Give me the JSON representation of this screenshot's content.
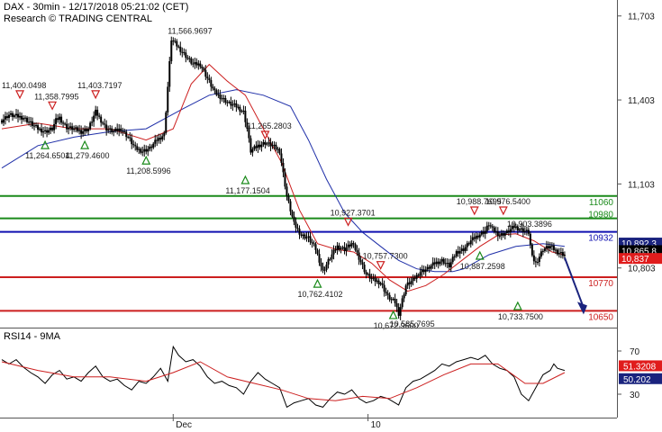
{
  "header": {
    "line1": "DAX - 30min - 12/17/2018 05:21:02 (CET)",
    "line2": "Research © TRADING CENTRAL"
  },
  "colors": {
    "candle": "#000000",
    "ma_fast": "#cc1f1f",
    "ma_slow": "#1f2fa8",
    "resistance": "#1a8a1a",
    "pivot": "#1010b0",
    "support": "#cc1f1f",
    "marker_up": "#1a8a1a",
    "marker_down": "#cc1f1f",
    "rsi": "#000000",
    "rsi_ma": "#cc1f1f",
    "badge_red": "#e01c1c",
    "badge_blue": "#1a237e",
    "badge_black": "#000000",
    "arrow": "#1a237e"
  },
  "chart_data": [
    {
      "type": "candlestick",
      "title": "DAX - 30min",
      "yaxis_ticks": [
        "11,703",
        "11,403",
        "11,103",
        "10,803"
      ],
      "ylim": [
        10590,
        11760
      ],
      "xaxis_ticks": [
        "Dec",
        "10"
      ],
      "x_range_bars": [
        0,
        340
      ],
      "xaxis_tick_bars": [
        95,
        203
      ],
      "series_close": [
        [
          0,
          11330
        ],
        [
          4,
          11350
        ],
        [
          8,
          11345
        ],
        [
          12,
          11340
        ],
        [
          16,
          11320
        ],
        [
          20,
          11300
        ],
        [
          24,
          11290
        ],
        [
          28,
          11300
        ],
        [
          30,
          11330
        ],
        [
          32,
          11340
        ],
        [
          34,
          11320
        ],
        [
          36,
          11305
        ],
        [
          40,
          11300
        ],
        [
          44,
          11290
        ],
        [
          48,
          11300
        ],
        [
          50,
          11330
        ],
        [
          52,
          11360
        ],
        [
          54,
          11340
        ],
        [
          58,
          11300
        ],
        [
          62,
          11290
        ],
        [
          66,
          11300
        ],
        [
          70,
          11270
        ],
        [
          74,
          11230
        ],
        [
          78,
          11220
        ],
        [
          82,
          11230
        ],
        [
          86,
          11260
        ],
        [
          90,
          11280
        ],
        [
          94,
          11620
        ],
        [
          98,
          11590
        ],
        [
          102,
          11560
        ],
        [
          106,
          11530
        ],
        [
          110,
          11530
        ],
        [
          114,
          11480
        ],
        [
          118,
          11430
        ],
        [
          122,
          11410
        ],
        [
          126,
          11390
        ],
        [
          130,
          11380
        ],
        [
          134,
          11360
        ],
        [
          136,
          11300
        ],
        [
          138,
          11220
        ],
        [
          142,
          11240
        ],
        [
          146,
          11250
        ],
        [
          150,
          11240
        ],
        [
          154,
          11220
        ],
        [
          158,
          11060
        ],
        [
          162,
          10960
        ],
        [
          166,
          10920
        ],
        [
          170,
          10910
        ],
        [
          174,
          10870
        ],
        [
          178,
          10790
        ],
        [
          182,
          10840
        ],
        [
          186,
          10880
        ],
        [
          190,
          10870
        ],
        [
          194,
          10890
        ],
        [
          196,
          10870
        ],
        [
          198,
          10840
        ],
        [
          202,
          10780
        ],
        [
          206,
          10760
        ],
        [
          210,
          10750
        ],
        [
          214,
          10700
        ],
        [
          218,
          10680
        ],
        [
          220,
          10640
        ],
        [
          224,
          10740
        ],
        [
          228,
          10760
        ],
        [
          232,
          10790
        ],
        [
          236,
          10800
        ],
        [
          240,
          10820
        ],
        [
          244,
          10830
        ],
        [
          248,
          10810
        ],
        [
          252,
          10860
        ],
        [
          256,
          10870
        ],
        [
          260,
          10900
        ],
        [
          264,
          10920
        ],
        [
          268,
          10935
        ],
        [
          270,
          10960
        ],
        [
          272,
          10940
        ],
        [
          276,
          10920
        ],
        [
          280,
          10930
        ],
        [
          284,
          10950
        ],
        [
          288,
          10940
        ],
        [
          292,
          10930
        ],
        [
          294,
          10840
        ],
        [
          296,
          10820
        ],
        [
          300,
          10870
        ],
        [
          304,
          10880
        ],
        [
          308,
          10860
        ],
        [
          312,
          10850
        ]
      ],
      "ma_fast": [
        [
          0,
          11300
        ],
        [
          20,
          11320
        ],
        [
          40,
          11300
        ],
        [
          60,
          11300
        ],
        [
          80,
          11260
        ],
        [
          95,
          11300
        ],
        [
          105,
          11460
        ],
        [
          115,
          11530
        ],
        [
          125,
          11470
        ],
        [
          135,
          11420
        ],
        [
          145,
          11300
        ],
        [
          155,
          11180
        ],
        [
          165,
          11010
        ],
        [
          175,
          10890
        ],
        [
          185,
          10870
        ],
        [
          195,
          10860
        ],
        [
          205,
          10820
        ],
        [
          215,
          10760
        ],
        [
          225,
          10720
        ],
        [
          235,
          10740
        ],
        [
          245,
          10780
        ],
        [
          255,
          10830
        ],
        [
          265,
          10880
        ],
        [
          275,
          10920
        ],
        [
          285,
          10925
        ],
        [
          295,
          10900
        ],
        [
          305,
          10860
        ],
        [
          312,
          10850
        ]
      ],
      "ma_slow": [
        [
          0,
          11160
        ],
        [
          20,
          11240
        ],
        [
          40,
          11270
        ],
        [
          60,
          11290
        ],
        [
          80,
          11300
        ],
        [
          100,
          11370
        ],
        [
          115,
          11420
        ],
        [
          130,
          11440
        ],
        [
          145,
          11420
        ],
        [
          160,
          11380
        ],
        [
          170,
          11260
        ],
        [
          180,
          11120
        ],
        [
          190,
          11000
        ],
        [
          200,
          10930
        ],
        [
          210,
          10880
        ],
        [
          220,
          10830
        ],
        [
          230,
          10800
        ],
        [
          240,
          10790
        ],
        [
          250,
          10790
        ],
        [
          256,
          10800
        ],
        [
          270,
          10850
        ],
        [
          285,
          10880
        ],
        [
          300,
          10890
        ],
        [
          312,
          10880
        ]
      ],
      "horizontal_levels": [
        {
          "name": "resistance-2",
          "value": 11060,
          "label": "11060",
          "color": "#1a8a1a"
        },
        {
          "name": "resistance-1",
          "value": 10980,
          "label": "10980",
          "color": "#1a8a1a"
        },
        {
          "name": "pivot",
          "value": 10932,
          "label": "10932",
          "color": "#1010b0"
        },
        {
          "name": "support-1",
          "value": 10770,
          "label": "10770",
          "color": "#cc1f1f"
        },
        {
          "name": "support-2",
          "value": 10650,
          "label": "10650",
          "color": "#cc1f1f"
        }
      ],
      "price_badges": [
        {
          "name": "badge-blue",
          "value": 10892,
          "label": "10,892.3",
          "color": "#1a237e"
        },
        {
          "name": "badge-black",
          "value": 10865,
          "label": "10,865.8",
          "color": "#000000"
        },
        {
          "name": "badge-red",
          "value": 10837,
          "label": "10,837",
          "color": "#e01c1c"
        }
      ],
      "annotations": [
        {
          "label": "11,400.0498",
          "bar": 10,
          "value": 11410,
          "marker": "down"
        },
        {
          "label": "11,358.7995",
          "bar": 28,
          "value": 11370,
          "marker": "down"
        },
        {
          "label": "11,403.7197",
          "bar": 52,
          "value": 11410,
          "marker": "down"
        },
        {
          "label": "11,264.6504",
          "bar": 24,
          "value": 11255,
          "marker": "up"
        },
        {
          "label": "11,279.4600",
          "bar": 46,
          "value": 11255,
          "marker": "up"
        },
        {
          "label": "11,208.5996",
          "bar": 80,
          "value": 11200,
          "marker": "up"
        },
        {
          "label": "11,566.9697",
          "bar": 97,
          "value": 11640,
          "marker": "none"
        },
        {
          "label": "11,265.2803",
          "bar": 146,
          "value": 11265,
          "marker": "down"
        },
        {
          "label": "11,177.1504",
          "bar": 135,
          "value": 11130,
          "marker": "up"
        },
        {
          "label": "10,927.3701",
          "bar": 192,
          "value": 10955,
          "marker": "down"
        },
        {
          "label": "10,762.4102",
          "bar": 175,
          "value": 10760,
          "marker": "up"
        },
        {
          "label": "10,757.7300",
          "bar": 210,
          "value": 10800,
          "marker": "down"
        },
        {
          "label": "10,672.9600",
          "bar": 217,
          "value": 10648,
          "marker": "up"
        },
        {
          "label": "10,585.7695",
          "bar": 220,
          "value": 10593,
          "marker": "none"
        },
        {
          "label": "10,988.7695",
          "bar": 262,
          "value": 10995,
          "marker": "down"
        },
        {
          "label": "10,976.5400",
          "bar": 278,
          "value": 10995,
          "marker": "down"
        },
        {
          "label": "10,903.3896",
          "bar": 285,
          "value": 10950,
          "marker": "none"
        },
        {
          "label": "10,887.2598",
          "bar": 265,
          "value": 10860,
          "marker": "up"
        },
        {
          "label": "10,733.7500",
          "bar": 286,
          "value": 10680,
          "marker": "up"
        }
      ],
      "forecast_arrow": {
        "from_bar": 312,
        "from_value": 10840,
        "to_bar": 322,
        "to_value": 10650
      }
    },
    {
      "type": "line",
      "title": "RSI14 - 9MA",
      "yaxis_ticks": [
        "70",
        "30"
      ],
      "ylim": [
        10,
        90
      ],
      "rsi": [
        [
          0,
          62
        ],
        [
          4,
          58
        ],
        [
          8,
          62
        ],
        [
          12,
          55
        ],
        [
          16,
          50
        ],
        [
          20,
          46
        ],
        [
          24,
          40
        ],
        [
          28,
          48
        ],
        [
          32,
          52
        ],
        [
          36,
          44
        ],
        [
          40,
          46
        ],
        [
          44,
          42
        ],
        [
          48,
          50
        ],
        [
          52,
          56
        ],
        [
          56,
          46
        ],
        [
          60,
          42
        ],
        [
          64,
          44
        ],
        [
          68,
          38
        ],
        [
          72,
          34
        ],
        [
          76,
          42
        ],
        [
          80,
          40
        ],
        [
          84,
          46
        ],
        [
          88,
          54
        ],
        [
          92,
          42
        ],
        [
          95,
          74
        ],
        [
          98,
          66
        ],
        [
          102,
          60
        ],
        [
          106,
          62
        ],
        [
          110,
          56
        ],
        [
          114,
          46
        ],
        [
          118,
          40
        ],
        [
          122,
          42
        ],
        [
          126,
          38
        ],
        [
          130,
          36
        ],
        [
          134,
          30
        ],
        [
          138,
          42
        ],
        [
          142,
          50
        ],
        [
          146,
          44
        ],
        [
          150,
          40
        ],
        [
          154,
          36
        ],
        [
          158,
          18
        ],
        [
          162,
          22
        ],
        [
          166,
          24
        ],
        [
          170,
          26
        ],
        [
          174,
          20
        ],
        [
          178,
          18
        ],
        [
          182,
          26
        ],
        [
          186,
          32
        ],
        [
          190,
          30
        ],
        [
          194,
          34
        ],
        [
          198,
          26
        ],
        [
          202,
          22
        ],
        [
          206,
          24
        ],
        [
          210,
          28
        ],
        [
          214,
          26
        ],
        [
          218,
          22
        ],
        [
          220,
          20
        ],
        [
          224,
          36
        ],
        [
          228,
          42
        ],
        [
          232,
          44
        ],
        [
          236,
          48
        ],
        [
          240,
          52
        ],
        [
          244,
          58
        ],
        [
          248,
          56
        ],
        [
          252,
          60
        ],
        [
          256,
          62
        ],
        [
          260,
          64
        ],
        [
          264,
          62
        ],
        [
          268,
          66
        ],
        [
          272,
          58
        ],
        [
          276,
          54
        ],
        [
          280,
          52
        ],
        [
          284,
          46
        ],
        [
          288,
          30
        ],
        [
          292,
          24
        ],
        [
          296,
          36
        ],
        [
          300,
          48
        ],
        [
          304,
          52
        ],
        [
          306,
          58
        ],
        [
          308,
          54
        ],
        [
          312,
          52
        ]
      ],
      "rsi_ma": [
        [
          0,
          60
        ],
        [
          20,
          52
        ],
        [
          40,
          46
        ],
        [
          60,
          46
        ],
        [
          80,
          42
        ],
        [
          95,
          50
        ],
        [
          110,
          60
        ],
        [
          125,
          46
        ],
        [
          140,
          40
        ],
        [
          155,
          34
        ],
        [
          170,
          26
        ],
        [
          185,
          24
        ],
        [
          200,
          28
        ],
        [
          215,
          26
        ],
        [
          230,
          36
        ],
        [
          245,
          48
        ],
        [
          260,
          58
        ],
        [
          275,
          58
        ],
        [
          290,
          40
        ],
        [
          300,
          40
        ],
        [
          312,
          50
        ]
      ],
      "badges": [
        {
          "name": "rsi-badge-red",
          "value": 51.3,
          "label": "51.3208",
          "color": "#e01c1c"
        },
        {
          "name": "rsi-badge-blue",
          "value": 50.2,
          "label": "50.202",
          "color": "#1a237e"
        }
      ]
    }
  ]
}
